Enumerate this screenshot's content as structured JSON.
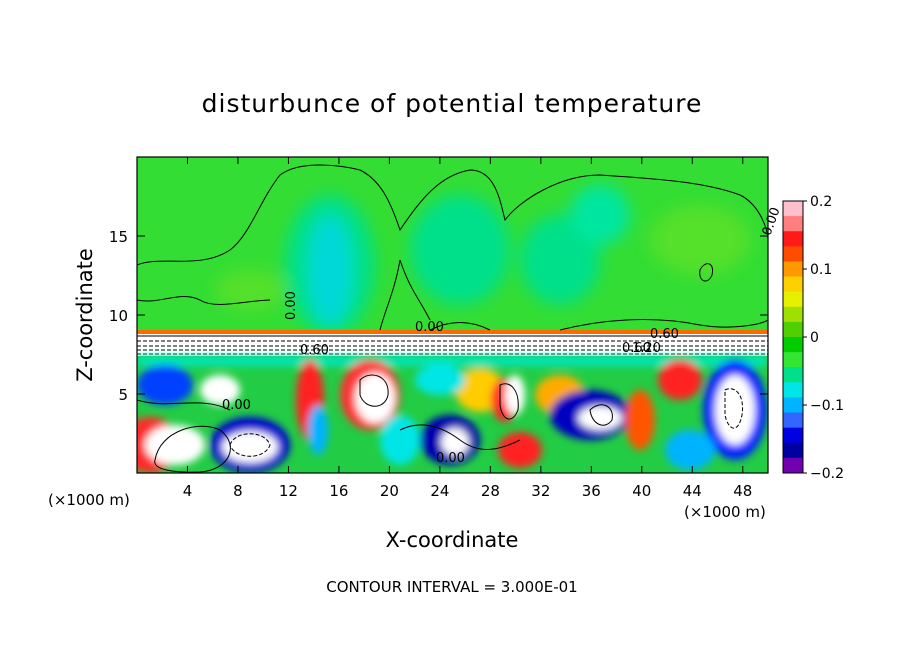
{
  "chart_data": {
    "type": "heatmap",
    "title": "disturbunce of potential temperature",
    "xlabel": "X-coordinate",
    "ylabel": "Z-coordinate",
    "x_unit": "(×1000 m)",
    "x_unit_right": "(×1000 m)",
    "x_ticks": [
      4,
      8,
      12,
      16,
      20,
      24,
      28,
      32,
      36,
      40,
      44,
      48
    ],
    "y_ticks": [
      5,
      10,
      15
    ],
    "xlim": [
      0,
      50
    ],
    "ylim": [
      0,
      20
    ],
    "colorbar": {
      "ticks": [
        0.2,
        0.1,
        0,
        -0.1,
        -0.2
      ],
      "tick_labels": [
        "0.2",
        "0.1",
        "0",
        "−0.1",
        "−0.2"
      ],
      "range": [
        -0.2,
        0.2
      ],
      "colors": [
        "#ffc0cb",
        "#ff7f7f",
        "#ff1a1a",
        "#ff4d00",
        "#ff9900",
        "#ffd000",
        "#e6f000",
        "#a0e000",
        "#50d000",
        "#00cc00",
        "#33e633",
        "#00e08a",
        "#00e6e6",
        "#00b3ff",
        "#3366ff",
        "#0000e0",
        "#0000a0",
        "#7000b0"
      ]
    },
    "contour_labels": [
      "0.00",
      "0.60",
      "0.60",
      "0.00",
      "0.00",
      "0.00",
      "0.00",
      "0.60",
      "1.20",
      "0.00",
      "0.00",
      "0.00",
      "0.00",
      "0.00",
      "0.00"
    ],
    "contour_interval_text": "CONTOUR INTERVAL = 3.000E-01"
  }
}
